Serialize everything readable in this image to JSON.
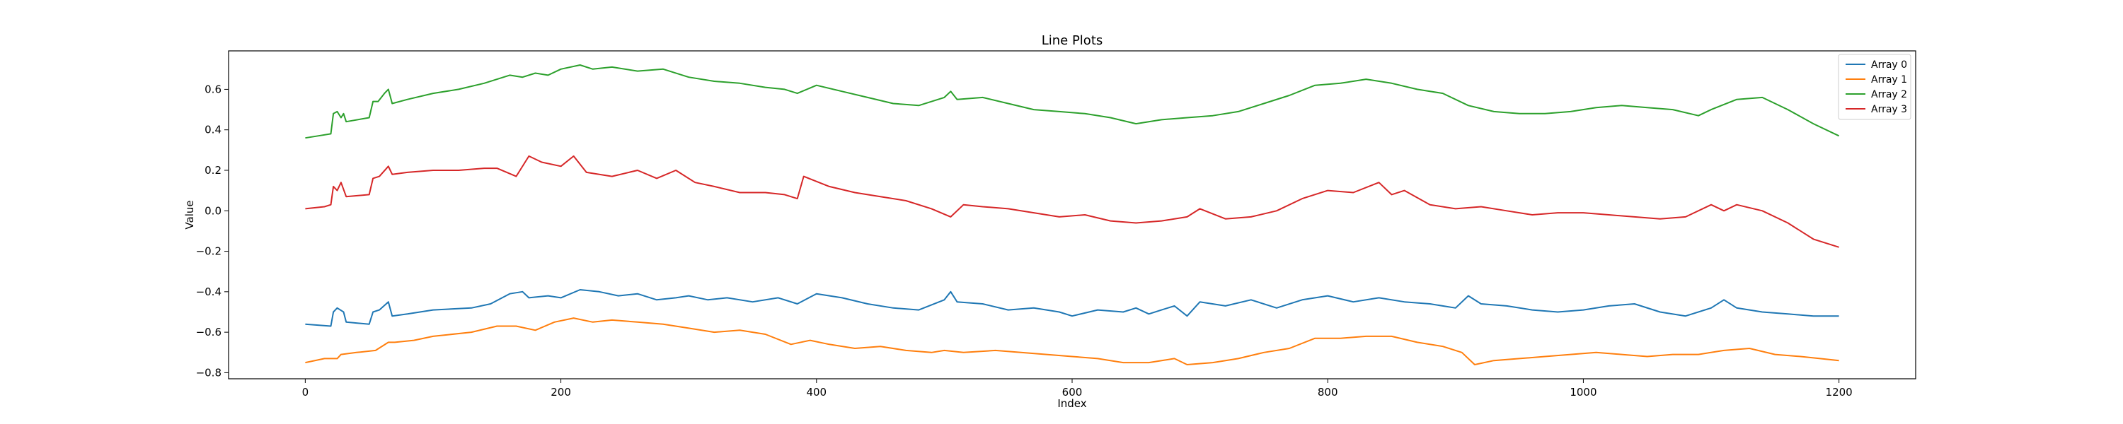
{
  "chart_data": {
    "type": "line",
    "title": "Line Plots",
    "xlabel": "Index",
    "ylabel": "Value",
    "xlim": [
      -60,
      1260
    ],
    "ylim": [
      -0.83,
      0.79
    ],
    "xticks": [
      0,
      200,
      400,
      600,
      800,
      1000,
      1200
    ],
    "yticks": [
      -0.8,
      -0.6,
      -0.4,
      -0.2,
      0.0,
      0.2,
      0.4,
      0.6
    ],
    "ytick_labels": [
      "−0.8",
      "−0.6",
      "−0.4",
      "−0.2",
      "0.0",
      "0.2",
      "0.4",
      "0.6"
    ],
    "grid": false,
    "legend_position": "top-right",
    "series": [
      {
        "name": "Array 0",
        "color": "#1f77b4",
        "points": [
          [
            0,
            -0.56
          ],
          [
            20,
            -0.57
          ],
          [
            22,
            -0.5
          ],
          [
            25,
            -0.48
          ],
          [
            30,
            -0.5
          ],
          [
            32,
            -0.55
          ],
          [
            50,
            -0.56
          ],
          [
            53,
            -0.5
          ],
          [
            58,
            -0.49
          ],
          [
            65,
            -0.45
          ],
          [
            68,
            -0.52
          ],
          [
            80,
            -0.51
          ],
          [
            100,
            -0.49
          ],
          [
            130,
            -0.48
          ],
          [
            145,
            -0.46
          ],
          [
            160,
            -0.41
          ],
          [
            170,
            -0.4
          ],
          [
            175,
            -0.43
          ],
          [
            190,
            -0.42
          ],
          [
            200,
            -0.43
          ],
          [
            215,
            -0.39
          ],
          [
            230,
            -0.4
          ],
          [
            245,
            -0.42
          ],
          [
            260,
            -0.41
          ],
          [
            275,
            -0.44
          ],
          [
            290,
            -0.43
          ],
          [
            300,
            -0.42
          ],
          [
            315,
            -0.44
          ],
          [
            330,
            -0.43
          ],
          [
            350,
            -0.45
          ],
          [
            370,
            -0.43
          ],
          [
            385,
            -0.46
          ],
          [
            400,
            -0.41
          ],
          [
            420,
            -0.43
          ],
          [
            440,
            -0.46
          ],
          [
            460,
            -0.48
          ],
          [
            480,
            -0.49
          ],
          [
            500,
            -0.44
          ],
          [
            505,
            -0.4
          ],
          [
            510,
            -0.45
          ],
          [
            530,
            -0.46
          ],
          [
            550,
            -0.49
          ],
          [
            570,
            -0.48
          ],
          [
            590,
            -0.5
          ],
          [
            600,
            -0.52
          ],
          [
            620,
            -0.49
          ],
          [
            640,
            -0.5
          ],
          [
            650,
            -0.48
          ],
          [
            660,
            -0.51
          ],
          [
            670,
            -0.49
          ],
          [
            680,
            -0.47
          ],
          [
            690,
            -0.52
          ],
          [
            700,
            -0.45
          ],
          [
            720,
            -0.47
          ],
          [
            740,
            -0.44
          ],
          [
            760,
            -0.48
          ],
          [
            780,
            -0.44
          ],
          [
            800,
            -0.42
          ],
          [
            820,
            -0.45
          ],
          [
            840,
            -0.43
          ],
          [
            860,
            -0.45
          ],
          [
            880,
            -0.46
          ],
          [
            900,
            -0.48
          ],
          [
            910,
            -0.42
          ],
          [
            920,
            -0.46
          ],
          [
            940,
            -0.47
          ],
          [
            960,
            -0.49
          ],
          [
            980,
            -0.5
          ],
          [
            1000,
            -0.49
          ],
          [
            1020,
            -0.47
          ],
          [
            1040,
            -0.46
          ],
          [
            1060,
            -0.5
          ],
          [
            1080,
            -0.52
          ],
          [
            1100,
            -0.48
          ],
          [
            1110,
            -0.44
          ],
          [
            1120,
            -0.48
          ],
          [
            1140,
            -0.5
          ],
          [
            1160,
            -0.51
          ],
          [
            1180,
            -0.52
          ],
          [
            1200,
            -0.52
          ]
        ]
      },
      {
        "name": "Array 1",
        "color": "#ff7f0e",
        "points": [
          [
            0,
            -0.75
          ],
          [
            15,
            -0.73
          ],
          [
            25,
            -0.73
          ],
          [
            28,
            -0.71
          ],
          [
            40,
            -0.7
          ],
          [
            55,
            -0.69
          ],
          [
            65,
            -0.65
          ],
          [
            70,
            -0.65
          ],
          [
            85,
            -0.64
          ],
          [
            100,
            -0.62
          ],
          [
            130,
            -0.6
          ],
          [
            150,
            -0.57
          ],
          [
            165,
            -0.57
          ],
          [
            180,
            -0.59
          ],
          [
            195,
            -0.55
          ],
          [
            210,
            -0.53
          ],
          [
            225,
            -0.55
          ],
          [
            240,
            -0.54
          ],
          [
            260,
            -0.55
          ],
          [
            280,
            -0.56
          ],
          [
            300,
            -0.58
          ],
          [
            320,
            -0.6
          ],
          [
            340,
            -0.59
          ],
          [
            360,
            -0.61
          ],
          [
            380,
            -0.66
          ],
          [
            395,
            -0.64
          ],
          [
            410,
            -0.66
          ],
          [
            430,
            -0.68
          ],
          [
            450,
            -0.67
          ],
          [
            470,
            -0.69
          ],
          [
            490,
            -0.7
          ],
          [
            500,
            -0.69
          ],
          [
            515,
            -0.7
          ],
          [
            540,
            -0.69
          ],
          [
            560,
            -0.7
          ],
          [
            580,
            -0.71
          ],
          [
            600,
            -0.72
          ],
          [
            620,
            -0.73
          ],
          [
            640,
            -0.75
          ],
          [
            660,
            -0.75
          ],
          [
            680,
            -0.73
          ],
          [
            690,
            -0.76
          ],
          [
            710,
            -0.75
          ],
          [
            730,
            -0.73
          ],
          [
            750,
            -0.7
          ],
          [
            770,
            -0.68
          ],
          [
            790,
            -0.63
          ],
          [
            810,
            -0.63
          ],
          [
            830,
            -0.62
          ],
          [
            850,
            -0.62
          ],
          [
            870,
            -0.65
          ],
          [
            890,
            -0.67
          ],
          [
            905,
            -0.7
          ],
          [
            915,
            -0.76
          ],
          [
            930,
            -0.74
          ],
          [
            950,
            -0.73
          ],
          [
            970,
            -0.72
          ],
          [
            990,
            -0.71
          ],
          [
            1010,
            -0.7
          ],
          [
            1030,
            -0.71
          ],
          [
            1050,
            -0.72
          ],
          [
            1070,
            -0.71
          ],
          [
            1090,
            -0.71
          ],
          [
            1110,
            -0.69
          ],
          [
            1130,
            -0.68
          ],
          [
            1150,
            -0.71
          ],
          [
            1170,
            -0.72
          ],
          [
            1200,
            -0.74
          ]
        ]
      },
      {
        "name": "Array 2",
        "color": "#2ca02c",
        "points": [
          [
            0,
            0.36
          ],
          [
            10,
            0.37
          ],
          [
            20,
            0.38
          ],
          [
            22,
            0.48
          ],
          [
            25,
            0.49
          ],
          [
            28,
            0.46
          ],
          [
            30,
            0.48
          ],
          [
            32,
            0.44
          ],
          [
            50,
            0.46
          ],
          [
            53,
            0.54
          ],
          [
            57,
            0.54
          ],
          [
            62,
            0.58
          ],
          [
            65,
            0.6
          ],
          [
            68,
            0.53
          ],
          [
            80,
            0.55
          ],
          [
            100,
            0.58
          ],
          [
            120,
            0.6
          ],
          [
            140,
            0.63
          ],
          [
            160,
            0.67
          ],
          [
            170,
            0.66
          ],
          [
            180,
            0.68
          ],
          [
            190,
            0.67
          ],
          [
            200,
            0.7
          ],
          [
            215,
            0.72
          ],
          [
            225,
            0.7
          ],
          [
            240,
            0.71
          ],
          [
            260,
            0.69
          ],
          [
            280,
            0.7
          ],
          [
            300,
            0.66
          ],
          [
            320,
            0.64
          ],
          [
            340,
            0.63
          ],
          [
            360,
            0.61
          ],
          [
            375,
            0.6
          ],
          [
            385,
            0.58
          ],
          [
            400,
            0.62
          ],
          [
            420,
            0.59
          ],
          [
            440,
            0.56
          ],
          [
            460,
            0.53
          ],
          [
            480,
            0.52
          ],
          [
            500,
            0.56
          ],
          [
            505,
            0.59
          ],
          [
            510,
            0.55
          ],
          [
            530,
            0.56
          ],
          [
            550,
            0.53
          ],
          [
            570,
            0.5
          ],
          [
            590,
            0.49
          ],
          [
            610,
            0.48
          ],
          [
            630,
            0.46
          ],
          [
            650,
            0.43
          ],
          [
            670,
            0.45
          ],
          [
            690,
            0.46
          ],
          [
            710,
            0.47
          ],
          [
            730,
            0.49
          ],
          [
            750,
            0.53
          ],
          [
            770,
            0.57
          ],
          [
            790,
            0.62
          ],
          [
            810,
            0.63
          ],
          [
            830,
            0.65
          ],
          [
            850,
            0.63
          ],
          [
            870,
            0.6
          ],
          [
            890,
            0.58
          ],
          [
            910,
            0.52
          ],
          [
            930,
            0.49
          ],
          [
            950,
            0.48
          ],
          [
            970,
            0.48
          ],
          [
            990,
            0.49
          ],
          [
            1010,
            0.51
          ],
          [
            1030,
            0.52
          ],
          [
            1050,
            0.51
          ],
          [
            1070,
            0.5
          ],
          [
            1090,
            0.47
          ],
          [
            1100,
            0.5
          ],
          [
            1120,
            0.55
          ],
          [
            1140,
            0.56
          ],
          [
            1160,
            0.5
          ],
          [
            1180,
            0.43
          ],
          [
            1200,
            0.37
          ]
        ]
      },
      {
        "name": "Array 3",
        "color": "#d62728",
        "points": [
          [
            0,
            0.01
          ],
          [
            15,
            0.02
          ],
          [
            20,
            0.03
          ],
          [
            22,
            0.12
          ],
          [
            25,
            0.1
          ],
          [
            28,
            0.14
          ],
          [
            32,
            0.07
          ],
          [
            50,
            0.08
          ],
          [
            53,
            0.16
          ],
          [
            58,
            0.17
          ],
          [
            65,
            0.22
          ],
          [
            68,
            0.18
          ],
          [
            80,
            0.19
          ],
          [
            100,
            0.2
          ],
          [
            120,
            0.2
          ],
          [
            140,
            0.21
          ],
          [
            150,
            0.21
          ],
          [
            165,
            0.17
          ],
          [
            175,
            0.27
          ],
          [
            185,
            0.24
          ],
          [
            200,
            0.22
          ],
          [
            210,
            0.27
          ],
          [
            220,
            0.19
          ],
          [
            240,
            0.17
          ],
          [
            260,
            0.2
          ],
          [
            275,
            0.16
          ],
          [
            290,
            0.2
          ],
          [
            305,
            0.14
          ],
          [
            320,
            0.12
          ],
          [
            340,
            0.09
          ],
          [
            360,
            0.09
          ],
          [
            375,
            0.08
          ],
          [
            385,
            0.06
          ],
          [
            390,
            0.17
          ],
          [
            410,
            0.12
          ],
          [
            430,
            0.09
          ],
          [
            450,
            0.07
          ],
          [
            470,
            0.05
          ],
          [
            490,
            0.01
          ],
          [
            505,
            -0.03
          ],
          [
            515,
            0.03
          ],
          [
            530,
            0.02
          ],
          [
            550,
            0.01
          ],
          [
            570,
            -0.01
          ],
          [
            590,
            -0.03
          ],
          [
            610,
            -0.02
          ],
          [
            630,
            -0.05
          ],
          [
            650,
            -0.06
          ],
          [
            670,
            -0.05
          ],
          [
            690,
            -0.03
          ],
          [
            700,
            0.01
          ],
          [
            720,
            -0.04
          ],
          [
            740,
            -0.03
          ],
          [
            760,
            0.0
          ],
          [
            780,
            0.06
          ],
          [
            800,
            0.1
          ],
          [
            820,
            0.09
          ],
          [
            840,
            0.14
          ],
          [
            850,
            0.08
          ],
          [
            860,
            0.1
          ],
          [
            880,
            0.03
          ],
          [
            900,
            0.01
          ],
          [
            920,
            0.02
          ],
          [
            940,
            0.0
          ],
          [
            960,
            -0.02
          ],
          [
            980,
            -0.01
          ],
          [
            1000,
            -0.01
          ],
          [
            1020,
            -0.02
          ],
          [
            1040,
            -0.03
          ],
          [
            1060,
            -0.04
          ],
          [
            1080,
            -0.03
          ],
          [
            1100,
            0.03
          ],
          [
            1110,
            0.0
          ],
          [
            1120,
            0.03
          ],
          [
            1140,
            0.0
          ],
          [
            1160,
            -0.06
          ],
          [
            1180,
            -0.14
          ],
          [
            1200,
            -0.18
          ]
        ]
      }
    ]
  }
}
